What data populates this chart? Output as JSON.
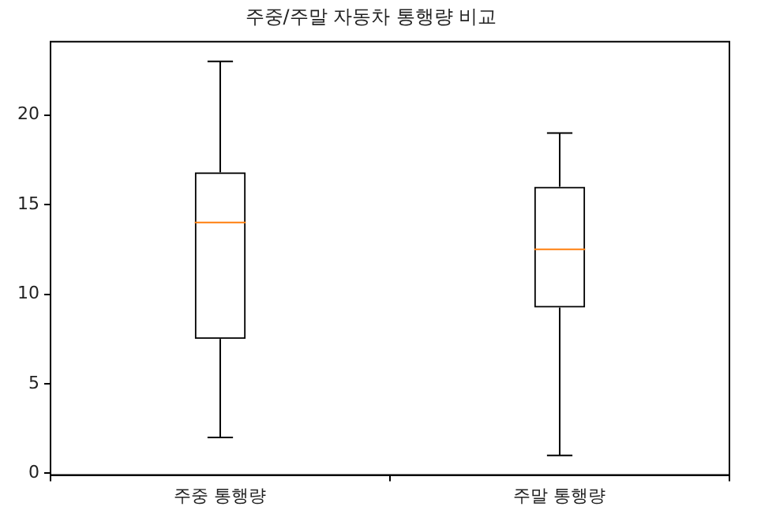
{
  "chart_data": {
    "type": "box",
    "title": "주중/주말 자동차 통행량 비교",
    "categories": [
      "주중 통행량",
      "주말 통행량"
    ],
    "boxes": [
      {
        "low": 2,
        "q1": 7.5,
        "median": 14,
        "q3": 16.8,
        "high": 23
      },
      {
        "low": 1,
        "q1": 9.25,
        "median": 12.5,
        "q3": 16,
        "high": 19
      }
    ],
    "ylim": [
      -0.1,
      24.1
    ],
    "yticks": [
      0,
      5,
      10,
      15,
      20
    ],
    "grid": false
  }
}
